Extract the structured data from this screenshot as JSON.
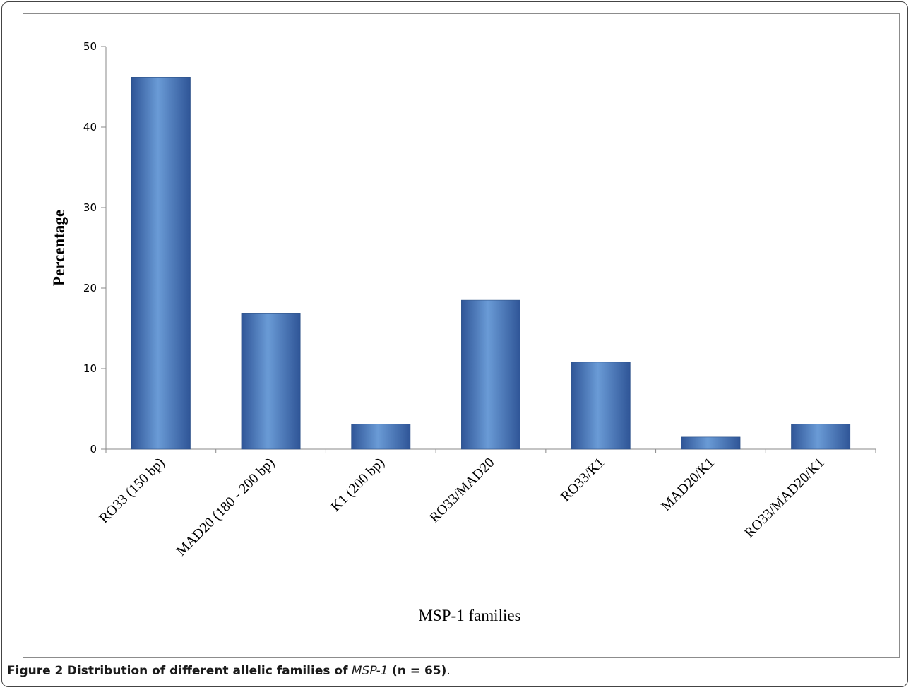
{
  "chart_data": {
    "type": "bar",
    "categories": [
      "RO33 (150 bp)",
      "MAD20 (180 - 200 bp)",
      "K1 (200 bp)",
      "RO33/MAD20",
      "RO33/K1",
      "MAD20/K1",
      "RO33/MAD20/K1"
    ],
    "values": [
      46.2,
      16.9,
      3.1,
      18.5,
      10.8,
      1.5,
      3.1
    ],
    "title": "",
    "xlabel": "MSP-1 families",
    "ylabel": "Percentage",
    "ylim": [
      0,
      50
    ],
    "yticks": [
      0,
      10,
      20,
      30,
      40,
      50
    ],
    "grid": false,
    "legend": "none",
    "bar_color": "#4f81bd"
  },
  "caption": {
    "label": "Figure 2",
    "text_before": "Distribution of different allelic families of",
    "gene": "MSP-1",
    "text_after": "(n = 65)",
    "end": "."
  }
}
